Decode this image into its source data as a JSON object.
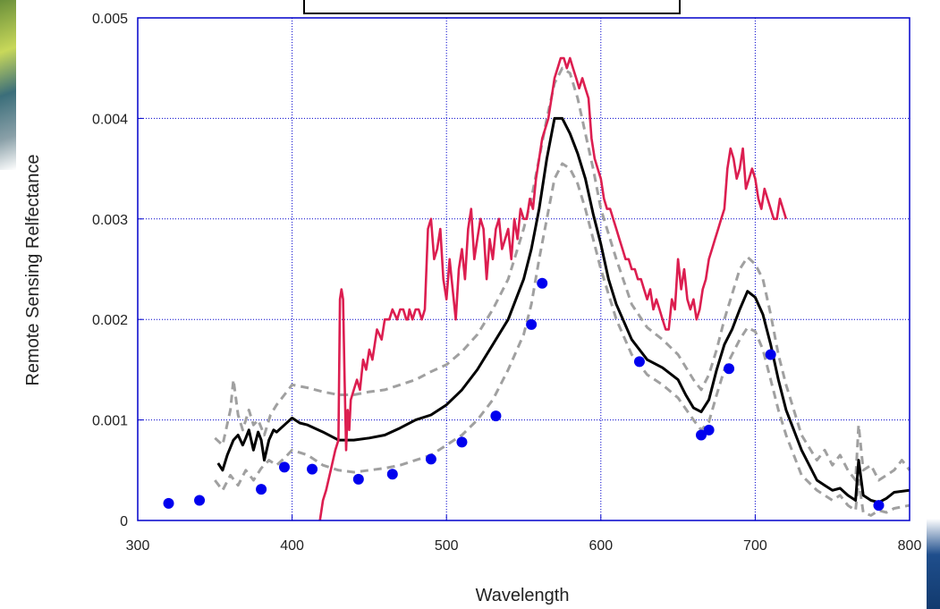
{
  "chart_data": {
    "type": "line",
    "title": "",
    "xlabel": "Wavelength",
    "ylabel": "Remote Sensing Relfectance",
    "xlim": [
      300,
      800
    ],
    "ylim": [
      0,
      0.005
    ],
    "x_ticks": [
      "300",
      "400",
      "500",
      "600",
      "700",
      "800"
    ],
    "y_ticks": [
      "0",
      "0.001",
      "0.002",
      "0.003",
      "0.004",
      "0.005"
    ],
    "grid": true,
    "legend": "top-center (empty box)",
    "colors": {
      "measured": "#dc1e50",
      "mean": "#000000",
      "bounds": "#a0a0a0",
      "points": "#0000ee",
      "frame": "#0000cc"
    },
    "series": [
      {
        "style": "solid-crimson",
        "x": [
          418,
          420,
          422,
          425,
          428,
          430,
          431,
          432,
          433,
          434,
          435,
          436,
          437,
          438,
          440,
          442,
          444,
          446,
          448,
          450,
          452,
          455,
          458,
          460,
          463,
          465,
          468,
          470,
          472,
          474,
          475,
          476,
          478,
          480,
          482,
          484,
          486,
          488,
          490,
          492,
          494,
          496,
          498,
          500,
          502,
          504,
          506,
          508,
          510,
          512,
          514,
          516,
          518,
          520,
          522,
          524,
          526,
          528,
          530,
          532,
          534,
          536,
          538,
          540,
          542,
          544,
          546,
          548,
          550,
          552,
          554,
          556,
          558,
          560,
          562,
          564,
          566,
          568,
          570,
          572,
          574,
          576,
          578,
          580,
          582,
          584,
          586,
          588,
          590,
          592,
          594,
          596,
          598,
          600,
          602,
          604,
          606,
          608,
          610,
          612,
          614,
          616,
          618,
          620,
          622,
          624,
          626,
          628,
          630,
          632,
          634,
          636,
          638,
          640,
          642,
          644,
          646,
          648,
          650,
          652,
          654,
          656,
          658,
          660,
          662,
          664,
          666,
          668,
          670,
          672,
          674,
          676,
          678,
          680,
          682,
          684,
          686,
          688,
          690,
          692,
          694,
          696,
          698,
          700,
          702,
          704,
          706,
          708,
          710,
          712,
          714,
          716,
          718,
          720
        ],
        "y": [
          0.0,
          0.0002,
          0.0003,
          0.0005,
          0.0007,
          0.0008,
          0.0022,
          0.0023,
          0.0022,
          0.0014,
          0.0007,
          0.0011,
          0.0009,
          0.0012,
          0.0013,
          0.0014,
          0.0013,
          0.0016,
          0.0015,
          0.0017,
          0.0016,
          0.0019,
          0.0018,
          0.002,
          0.002,
          0.0021,
          0.002,
          0.0021,
          0.0021,
          0.002,
          0.002,
          0.0021,
          0.002,
          0.0021,
          0.0021,
          0.002,
          0.0021,
          0.0029,
          0.003,
          0.0026,
          0.0027,
          0.0029,
          0.0024,
          0.0022,
          0.0026,
          0.0023,
          0.002,
          0.0025,
          0.0027,
          0.0024,
          0.0029,
          0.0031,
          0.0026,
          0.0028,
          0.003,
          0.0029,
          0.0024,
          0.0028,
          0.0026,
          0.0029,
          0.003,
          0.0027,
          0.0028,
          0.0029,
          0.0026,
          0.003,
          0.0028,
          0.0031,
          0.003,
          0.003,
          0.0032,
          0.0031,
          0.0034,
          0.0036,
          0.0038,
          0.0039,
          0.004,
          0.0042,
          0.0044,
          0.0045,
          0.0046,
          0.0046,
          0.0045,
          0.0046,
          0.0045,
          0.0044,
          0.0043,
          0.0044,
          0.0043,
          0.0042,
          0.0038,
          0.0036,
          0.0035,
          0.0034,
          0.0032,
          0.0031,
          0.0031,
          0.003,
          0.0029,
          0.0028,
          0.0027,
          0.0026,
          0.0026,
          0.0025,
          0.0025,
          0.0024,
          0.0024,
          0.0023,
          0.0022,
          0.0023,
          0.0021,
          0.0022,
          0.0021,
          0.002,
          0.0019,
          0.0019,
          0.0022,
          0.0021,
          0.0026,
          0.0023,
          0.0025,
          0.0022,
          0.0021,
          0.0022,
          0.002,
          0.0021,
          0.0023,
          0.0024,
          0.0026,
          0.0027,
          0.0028,
          0.0029,
          0.003,
          0.0031,
          0.0035,
          0.0037,
          0.0036,
          0.0034,
          0.0035,
          0.0037,
          0.0033,
          0.0034,
          0.0035,
          0.0034,
          0.0032,
          0.0031,
          0.0033,
          0.0032,
          0.0031,
          0.003,
          0.003,
          0.0032,
          0.0031,
          0.003
        ]
      },
      {
        "style": "solid-black",
        "x": [
          352,
          355,
          358,
          362,
          365,
          368,
          370,
          372,
          375,
          378,
          380,
          382,
          385,
          388,
          390,
          395,
          400,
          405,
          410,
          420,
          430,
          440,
          450,
          460,
          470,
          480,
          490,
          500,
          510,
          520,
          530,
          540,
          550,
          555,
          560,
          565,
          570,
          575,
          580,
          585,
          590,
          595,
          600,
          605,
          610,
          620,
          630,
          640,
          650,
          655,
          660,
          665,
          670,
          675,
          680,
          685,
          690,
          695,
          700,
          705,
          710,
          715,
          720,
          730,
          740,
          745,
          750,
          755,
          760,
          765,
          767,
          770,
          775,
          780,
          785,
          790,
          800
        ],
        "y": [
          0.00057,
          0.0005,
          0.00065,
          0.0008,
          0.00085,
          0.00075,
          0.00082,
          0.0009,
          0.0007,
          0.00088,
          0.0008,
          0.0006,
          0.0008,
          0.0009,
          0.00088,
          0.00095,
          0.00102,
          0.00097,
          0.00095,
          0.00088,
          0.0008,
          0.0008,
          0.00082,
          0.00085,
          0.00092,
          0.001,
          0.00105,
          0.00115,
          0.0013,
          0.0015,
          0.00175,
          0.002,
          0.0024,
          0.0027,
          0.0031,
          0.0036,
          0.004,
          0.004,
          0.00385,
          0.00365,
          0.0034,
          0.00305,
          0.00275,
          0.0024,
          0.00215,
          0.0018,
          0.0016,
          0.00152,
          0.0014,
          0.00125,
          0.00112,
          0.00108,
          0.0012,
          0.0015,
          0.00175,
          0.0019,
          0.0021,
          0.00228,
          0.00222,
          0.00205,
          0.00175,
          0.0014,
          0.0011,
          0.0007,
          0.0004,
          0.00035,
          0.0003,
          0.00032,
          0.00025,
          0.0002,
          0.0006,
          0.00025,
          0.0002,
          0.00018,
          0.00022,
          0.00028,
          0.0003
        ]
      },
      {
        "style": "dashed-gray-upper",
        "x": [
          350,
          355,
          360,
          362,
          365,
          368,
          372,
          375,
          378,
          382,
          386,
          390,
          395,
          400,
          410,
          420,
          430,
          440,
          450,
          460,
          470,
          480,
          490,
          500,
          510,
          520,
          530,
          540,
          550,
          555,
          560,
          565,
          570,
          575,
          580,
          585,
          590,
          595,
          600,
          610,
          620,
          630,
          640,
          650,
          660,
          665,
          670,
          675,
          680,
          685,
          690,
          695,
          700,
          705,
          710,
          715,
          720,
          730,
          740,
          745,
          750,
          755,
          760,
          765,
          767,
          770,
          775,
          780,
          785,
          790,
          795,
          800
        ],
        "y": [
          0.00082,
          0.00075,
          0.0011,
          0.0014,
          0.00105,
          0.0009,
          0.0011,
          0.00095,
          0.001,
          0.00085,
          0.00105,
          0.00115,
          0.00125,
          0.00135,
          0.00132,
          0.00128,
          0.00125,
          0.00125,
          0.00128,
          0.0013,
          0.00135,
          0.0014,
          0.00148,
          0.00155,
          0.00168,
          0.00185,
          0.0021,
          0.0024,
          0.0029,
          0.0032,
          0.0036,
          0.004,
          0.00435,
          0.0045,
          0.00445,
          0.0042,
          0.00385,
          0.0035,
          0.0031,
          0.0026,
          0.00215,
          0.00192,
          0.0018,
          0.00165,
          0.0014,
          0.0013,
          0.00145,
          0.0017,
          0.002,
          0.00225,
          0.0025,
          0.00262,
          0.00255,
          0.0024,
          0.00205,
          0.00165,
          0.00135,
          0.00085,
          0.0006,
          0.0007,
          0.00055,
          0.00065,
          0.0005,
          0.0004,
          0.00095,
          0.0005,
          0.00055,
          0.0004,
          0.00045,
          0.0005,
          0.0006,
          0.0005
        ]
      },
      {
        "style": "dashed-gray-lower",
        "x": [
          350,
          355,
          360,
          365,
          370,
          375,
          380,
          385,
          390,
          395,
          400,
          410,
          420,
          430,
          440,
          450,
          460,
          470,
          480,
          490,
          500,
          510,
          520,
          530,
          540,
          550,
          555,
          560,
          565,
          570,
          575,
          580,
          585,
          590,
          595,
          600,
          610,
          620,
          630,
          640,
          650,
          660,
          665,
          670,
          675,
          680,
          685,
          690,
          695,
          700,
          705,
          710,
          715,
          720,
          730,
          740,
          745,
          750,
          755,
          760,
          765,
          767,
          770,
          775,
          780,
          785,
          790,
          800
        ],
        "y": [
          0.0004,
          0.0003,
          0.00045,
          0.00035,
          0.0005,
          0.0004,
          0.00052,
          0.0006,
          0.00055,
          0.00062,
          0.0007,
          0.00065,
          0.00055,
          0.0005,
          0.00048,
          0.0005,
          0.00052,
          0.00055,
          0.0006,
          0.00065,
          0.00075,
          0.00085,
          0.001,
          0.0012,
          0.0015,
          0.00185,
          0.00215,
          0.0026,
          0.003,
          0.0034,
          0.00355,
          0.0035,
          0.00335,
          0.0031,
          0.0028,
          0.0025,
          0.002,
          0.00165,
          0.00145,
          0.00135,
          0.00122,
          0.001,
          0.0009,
          0.00098,
          0.00125,
          0.0015,
          0.00165,
          0.0018,
          0.00192,
          0.00188,
          0.0017,
          0.0014,
          0.0011,
          0.00085,
          0.00045,
          0.0003,
          0.00025,
          0.0002,
          0.00025,
          0.00015,
          0.0001,
          0.0004,
          8e-05,
          5e-05,
          0.0001,
          8e-05,
          0.00012,
          0.00015
        ]
      },
      {
        "style": "points-blue",
        "x": [
          320,
          340,
          380,
          395,
          413,
          443,
          465,
          490,
          510,
          532,
          555,
          562,
          625,
          665,
          670,
          683,
          710,
          780
        ],
        "y": [
          0.00017,
          0.0002,
          0.00031,
          0.00053,
          0.00051,
          0.00041,
          0.00046,
          0.00061,
          0.00078,
          0.00104,
          0.00195,
          0.00236,
          0.00158,
          0.00085,
          0.0009,
          0.00151,
          0.00165,
          0.00015
        ]
      }
    ]
  }
}
